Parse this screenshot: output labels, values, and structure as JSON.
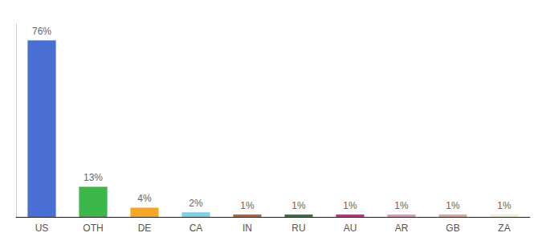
{
  "chart_data": {
    "type": "bar",
    "categories": [
      "US",
      "OTH",
      "DE",
      "CA",
      "IN",
      "RU",
      "AU",
      "AR",
      "GB",
      "ZA"
    ],
    "values": [
      76,
      13,
      4,
      2,
      1,
      1,
      1,
      1,
      1,
      1
    ],
    "value_labels": [
      "76%",
      "13%",
      "4%",
      "2%",
      "1%",
      "1%",
      "1%",
      "1%",
      "1%",
      "1%"
    ],
    "data_labels": true,
    "colors": [
      "#4a6fd4",
      "#3cb84a",
      "#f5a623",
      "#7ecfed",
      "#c0622a",
      "#2e7d32",
      "#e91e8c",
      "#f48fb1",
      "#e8a090",
      "#f5f0c8"
    ],
    "ylim": [
      0,
      83
    ],
    "tick_labels": "x",
    "grid": false
  }
}
